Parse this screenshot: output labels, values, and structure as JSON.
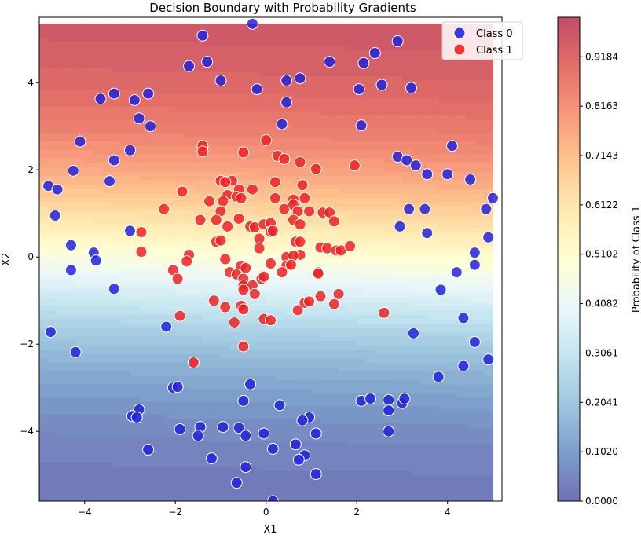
{
  "chart_data": {
    "type": "scatter",
    "title": "Decision Boundary with Probability Gradients",
    "xlabel": "X1",
    "ylabel": "X2",
    "xlim": [
      -5,
      5.2
    ],
    "ylim": [
      -5.6,
      5.5
    ],
    "xticks": [
      -4,
      -2,
      0,
      2,
      4
    ],
    "yticks": [
      -4,
      -2,
      0,
      2,
      4
    ],
    "background": {
      "type": "contourf",
      "colormap": "RdYlBu_r",
      "x_range": [
        -5,
        5
      ],
      "y_range": [
        -5.6,
        5.35
      ],
      "description_levels": 50
    },
    "legend": {
      "placement": "top-right",
      "entries": [
        "Class 0",
        "Class 1"
      ]
    },
    "colorbar": {
      "label": "Probability of Class 1",
      "ticks": [
        "0.0000",
        "0.1020",
        "0.2041",
        "0.3061",
        "0.4082",
        "0.5102",
        "0.6122",
        "0.7143",
        "0.8163",
        "0.9184"
      ],
      "range": [
        0,
        1
      ]
    },
    "series": [
      {
        "name": "Class 0",
        "color": "#2222dd",
        "points": [
          [
            -0.3,
            5.35
          ],
          [
            -1.4,
            5.08
          ],
          [
            2.9,
            4.95
          ],
          [
            -1.7,
            4.38
          ],
          [
            -1.3,
            4.48
          ],
          [
            1.4,
            4.48
          ],
          [
            2.15,
            4.45
          ],
          [
            2.4,
            4.68
          ],
          [
            -1.0,
            4.05
          ],
          [
            0.45,
            4.05
          ],
          [
            0.75,
            4.1
          ],
          [
            -0.2,
            3.85
          ],
          [
            2.05,
            3.85
          ],
          [
            2.55,
            3.95
          ],
          [
            3.2,
            3.88
          ],
          [
            -3.65,
            3.63
          ],
          [
            -3.35,
            3.75
          ],
          [
            -2.6,
            3.75
          ],
          [
            -2.9,
            3.6
          ],
          [
            0.45,
            3.55
          ],
          [
            -2.8,
            3.18
          ],
          [
            -2.55,
            3.0
          ],
          [
            0.35,
            3.05
          ],
          [
            2.1,
            3.02
          ],
          [
            -4.1,
            2.65
          ],
          [
            4.1,
            2.55
          ],
          [
            -3.0,
            2.45
          ],
          [
            -3.35,
            2.22
          ],
          [
            2.9,
            2.3
          ],
          [
            3.1,
            2.22
          ],
          [
            3.3,
            2.1
          ],
          [
            -4.25,
            1.98
          ],
          [
            3.55,
            1.9
          ],
          [
            4.0,
            1.9
          ],
          [
            4.5,
            1.78
          ],
          [
            -3.45,
            1.74
          ],
          [
            -4.8,
            1.63
          ],
          [
            -4.6,
            1.55
          ],
          [
            3.15,
            1.1
          ],
          [
            3.5,
            1.1
          ],
          [
            4.85,
            1.1
          ],
          [
            5.0,
            1.35
          ],
          [
            -4.65,
            0.95
          ],
          [
            2.95,
            0.7
          ],
          [
            -3.0,
            0.6
          ],
          [
            3.55,
            0.55
          ],
          [
            4.9,
            0.45
          ],
          [
            -4.3,
            0.27
          ],
          [
            -3.8,
            0.1
          ],
          [
            4.6,
            0.1
          ],
          [
            -3.75,
            -0.08
          ],
          [
            -4.3,
            -0.3
          ],
          [
            4.6,
            -0.18
          ],
          [
            4.2,
            -0.35
          ],
          [
            -3.35,
            -0.73
          ],
          [
            3.85,
            -0.75
          ],
          [
            4.35,
            -1.4
          ],
          [
            -4.75,
            -1.72
          ],
          [
            -2.2,
            -1.6
          ],
          [
            3.25,
            -1.75
          ],
          [
            4.6,
            -1.95
          ],
          [
            -4.2,
            -2.18
          ],
          [
            4.9,
            -2.35
          ],
          [
            4.35,
            -2.5
          ],
          [
            3.8,
            -2.75
          ],
          [
            -2.05,
            -3.0
          ],
          [
            -1.95,
            -2.98
          ],
          [
            -0.35,
            -2.92
          ],
          [
            2.1,
            -3.3
          ],
          [
            2.3,
            -3.25
          ],
          [
            2.7,
            -3.28
          ],
          [
            3.0,
            -3.35
          ],
          [
            3.05,
            -3.25
          ],
          [
            -0.5,
            -3.3
          ],
          [
            0.3,
            -3.4
          ],
          [
            -2.8,
            -3.5
          ],
          [
            2.7,
            -3.52
          ],
          [
            -2.95,
            -3.65
          ],
          [
            -2.85,
            -3.68
          ],
          [
            0.95,
            -3.68
          ],
          [
            0.8,
            -3.75
          ],
          [
            -1.45,
            -3.9
          ],
          [
            -0.95,
            -3.9
          ],
          [
            -0.6,
            -3.92
          ],
          [
            -1.9,
            -3.95
          ],
          [
            -0.45,
            -4.1
          ],
          [
            -0.05,
            -4.05
          ],
          [
            1.1,
            -4.05
          ],
          [
            2.7,
            -4.0
          ],
          [
            -1.5,
            -4.1
          ],
          [
            0.65,
            -4.3
          ],
          [
            0.15,
            -4.4
          ],
          [
            -2.6,
            -4.42
          ],
          [
            0.85,
            -4.55
          ],
          [
            0.72,
            -4.65
          ],
          [
            -1.2,
            -4.62
          ],
          [
            -0.45,
            -4.82
          ],
          [
            1.1,
            -4.98
          ],
          [
            -0.65,
            -5.18
          ],
          [
            0.15,
            -5.6
          ]
        ]
      },
      {
        "name": "Class 1",
        "color": "#ee2222",
        "points": [
          [
            0.0,
            2.68
          ],
          [
            0.25,
            2.32
          ],
          [
            0.4,
            2.25
          ],
          [
            0.75,
            2.18
          ],
          [
            1.95,
            2.1
          ],
          [
            1.1,
            2.02
          ],
          [
            -1.4,
            2.55
          ],
          [
            -1.4,
            2.42
          ],
          [
            -0.5,
            2.4
          ],
          [
            -1.0,
            1.75
          ],
          [
            -0.75,
            1.75
          ],
          [
            -0.9,
            1.72
          ],
          [
            0.2,
            1.72
          ],
          [
            0.8,
            1.65
          ],
          [
            -0.6,
            1.55
          ],
          [
            -0.3,
            1.55
          ],
          [
            -1.85,
            1.5
          ],
          [
            -0.85,
            1.42
          ],
          [
            -0.65,
            1.38
          ],
          [
            -0.55,
            1.35
          ],
          [
            -1.25,
            1.28
          ],
          [
            -0.95,
            1.28
          ],
          [
            0.6,
            1.32
          ],
          [
            0.85,
            1.35
          ],
          [
            0.2,
            1.35
          ],
          [
            0.4,
            1.1
          ],
          [
            -2.25,
            1.1
          ],
          [
            -1.0,
            1.05
          ],
          [
            0.6,
            1.2
          ],
          [
            0.7,
            1.05
          ],
          [
            0.95,
            1.05
          ],
          [
            1.25,
            1.02
          ],
          [
            1.4,
            1.02
          ],
          [
            -1.45,
            0.85
          ],
          [
            -1.1,
            0.85
          ],
          [
            -0.6,
            0.88
          ],
          [
            0.6,
            0.85
          ],
          [
            1.5,
            0.82
          ],
          [
            -0.85,
            0.7
          ],
          [
            -0.35,
            0.7
          ],
          [
            -0.25,
            0.68
          ],
          [
            -0.05,
            0.75
          ],
          [
            0.1,
            0.78
          ],
          [
            0.75,
            0.75
          ],
          [
            0.1,
            0.58
          ],
          [
            0.15,
            0.6
          ],
          [
            -2.75,
            0.57
          ],
          [
            -0.15,
            0.42
          ],
          [
            -1.1,
            0.35
          ],
          [
            -1.0,
            0.38
          ],
          [
            0.65,
            0.35
          ],
          [
            0.75,
            0.35
          ],
          [
            1.2,
            0.22
          ],
          [
            1.35,
            0.2
          ],
          [
            1.55,
            0.15
          ],
          [
            1.65,
            0.15
          ],
          [
            1.85,
            0.25
          ],
          [
            -0.15,
            0.2
          ],
          [
            -2.75,
            0.12
          ],
          [
            -1.7,
            0.05
          ],
          [
            0.75,
            0.05
          ],
          [
            -0.9,
            -0.05
          ],
          [
            0.45,
            0.0
          ],
          [
            0.6,
            0.03
          ],
          [
            -1.75,
            -0.1
          ],
          [
            0.1,
            -0.15
          ],
          [
            0.45,
            -0.2
          ],
          [
            0.55,
            -0.18
          ],
          [
            -2.05,
            -0.3
          ],
          [
            -0.55,
            -0.2
          ],
          [
            -0.45,
            -0.25
          ],
          [
            -0.8,
            -0.35
          ],
          [
            0.35,
            -0.35
          ],
          [
            -0.65,
            -0.4
          ],
          [
            1.15,
            -0.35
          ],
          [
            -1.95,
            -0.5
          ],
          [
            -0.5,
            -0.5
          ],
          [
            -0.1,
            -0.5
          ],
          [
            -0.05,
            -0.45
          ],
          [
            1.15,
            -0.38
          ],
          [
            -0.5,
            -0.65
          ],
          [
            -0.3,
            -0.65
          ],
          [
            -0.5,
            -0.75
          ],
          [
            -0.25,
            -0.85
          ],
          [
            1.6,
            -0.85
          ],
          [
            -1.15,
            -1.0
          ],
          [
            0.85,
            -1.05
          ],
          [
            0.95,
            -1.02
          ],
          [
            1.2,
            -0.9
          ],
          [
            1.5,
            -1.08
          ],
          [
            -0.9,
            -1.15
          ],
          [
            -0.55,
            -1.12
          ],
          [
            -0.5,
            -1.2
          ],
          [
            0.7,
            -1.22
          ],
          [
            2.6,
            -1.28
          ],
          [
            -1.9,
            -1.35
          ],
          [
            -0.7,
            -1.5
          ],
          [
            -0.05,
            -1.42
          ],
          [
            0.1,
            -1.45
          ],
          [
            -0.5,
            -2.05
          ],
          [
            -1.6,
            -2.42
          ]
        ]
      }
    ]
  }
}
